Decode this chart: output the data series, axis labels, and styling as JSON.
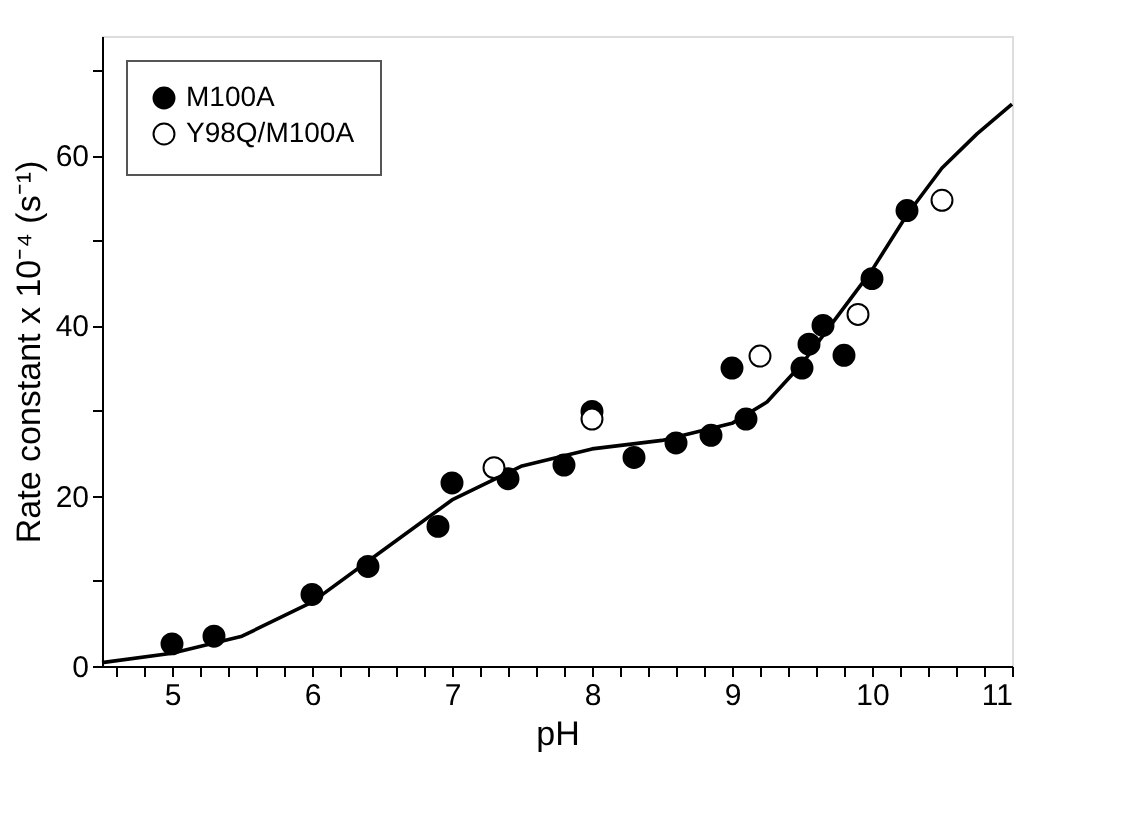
{
  "chart_data": {
    "type": "scatter",
    "xlabel": "pH",
    "ylabel": "Rate constant x 10⁻⁴ (s⁻¹)",
    "xlim": [
      4.5,
      11
    ],
    "ylim": [
      0,
      74
    ],
    "xticks": [
      {
        "value": 4.6,
        "label": null
      },
      {
        "value": 4.8,
        "label": null
      },
      5,
      {
        "value": 5.2,
        "label": null
      },
      {
        "value": 5.4,
        "label": null
      },
      {
        "value": 5.6,
        "label": null
      },
      {
        "value": 5.8,
        "label": null
      },
      6,
      {
        "value": 6.2,
        "label": null
      },
      {
        "value": 6.4,
        "label": null
      },
      {
        "value": 6.6,
        "label": null
      },
      {
        "value": 6.8,
        "label": null
      },
      7,
      {
        "value": 7.2,
        "label": null
      },
      {
        "value": 7.4,
        "label": null
      },
      {
        "value": 7.6,
        "label": null
      },
      {
        "value": 7.8,
        "label": null
      },
      8,
      {
        "value": 8.2,
        "label": null
      },
      {
        "value": 8.4,
        "label": null
      },
      {
        "value": 8.6,
        "label": null
      },
      {
        "value": 8.8,
        "label": null
      },
      9,
      {
        "value": 9.2,
        "label": null
      },
      {
        "value": 9.4,
        "label": null
      },
      {
        "value": 9.6,
        "label": null
      },
      {
        "value": 9.8,
        "label": null
      },
      10,
      {
        "value": 10.2,
        "label": null
      },
      {
        "value": 10.4,
        "label": null
      },
      {
        "value": 10.6,
        "label": null
      },
      {
        "value": 10.8,
        "label": null
      },
      11
    ],
    "yticks": [
      0,
      {
        "value": 10,
        "label": null
      },
      20,
      {
        "value": 30,
        "label": null
      },
      40,
      {
        "value": 50,
        "label": null
      },
      60,
      {
        "value": 70,
        "label": null
      }
    ],
    "grid": false,
    "legend": "top left",
    "marker": "circle",
    "series": [
      {
        "name": "M100A",
        "color": "#000000",
        "x": [
          5.0,
          5.3,
          6.0,
          6.4,
          6.9,
          7.0,
          7.4,
          7.8,
          8.0,
          8.3,
          8.6,
          8.85,
          9.0,
          9.1,
          9.5,
          9.55,
          9.65,
          9.8,
          10.0,
          10.25
        ],
        "values": [
          2.6,
          3.5,
          8.4,
          11.7,
          16.4,
          21.5,
          22.0,
          23.6,
          29.9,
          24.5,
          26.2,
          27.1,
          35,
          29,
          35,
          37.8,
          40,
          36.5,
          45.5,
          53.5
        ]
      },
      {
        "name": "Y98Q/M100A",
        "color": "#ffffff",
        "x": [
          7.3,
          8.0,
          9.2,
          9.9,
          10.5
        ],
        "values": [
          23.3,
          29,
          36.4,
          41.3,
          54.7
        ]
      },
      {
        "type": "line",
        "color": "#000000",
        "line_style": "solid",
        "marker": "none",
        "x": [
          4.5,
          5,
          5.5,
          6,
          6.5,
          7,
          7.5,
          8,
          8.5,
          9,
          9.25,
          9.5,
          9.75,
          10,
          10.25,
          10.5,
          10.75,
          11
        ],
        "values": [
          0.4,
          1.5,
          3.5,
          7.5,
          13.5,
          19.5,
          23.5,
          25.5,
          26.5,
          28.5,
          31,
          35.5,
          41,
          46.5,
          53,
          58.5,
          62.5,
          66
        ]
      }
    ]
  }
}
